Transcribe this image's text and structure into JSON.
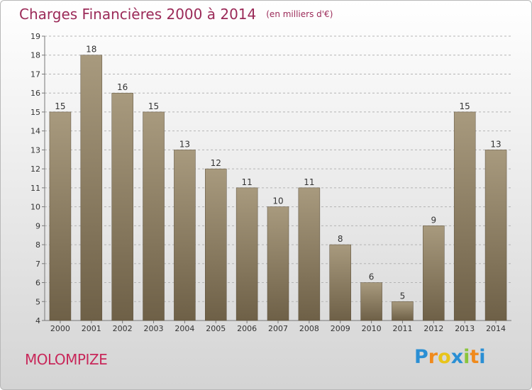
{
  "header": {
    "title": "Charges Financières 2000 à 2014",
    "unit": "(en milliers d'€)"
  },
  "footer": {
    "commune": "MOLOMPIZE",
    "logo": {
      "letters": [
        "P",
        "r",
        "o",
        "x",
        "i",
        "t",
        "i"
      ],
      "colors": [
        "#2a8fd4",
        "#f08a1c",
        "#e8c41a",
        "#2a8fd4",
        "#8ac43a",
        "#f08a1c",
        "#2a8fd4"
      ]
    }
  },
  "colors": {
    "bar_top": "#a89a7e",
    "bar_bottom": "#6e6047",
    "grid": "#b4b4b4",
    "title": "#9b2a58",
    "commune": "#c8285a"
  },
  "chart_data": {
    "type": "bar",
    "title": "Charges Financières 2000 à 2014",
    "subtitle": "(en milliers d'€)",
    "xlabel": "",
    "ylabel": "",
    "categories": [
      "2000",
      "2001",
      "2002",
      "2003",
      "2004",
      "2005",
      "2006",
      "2007",
      "2008",
      "2009",
      "2010",
      "2011",
      "2012",
      "2013",
      "2014"
    ],
    "values": [
      15,
      18,
      16,
      15,
      13,
      12,
      11,
      10,
      11,
      8,
      6,
      5,
      9,
      15,
      13
    ],
    "ylim": [
      4,
      19
    ],
    "yticks": [
      4,
      5,
      6,
      7,
      8,
      9,
      10,
      11,
      12,
      13,
      14,
      15,
      16,
      17,
      18,
      19
    ],
    "grid": true,
    "legend": "none"
  }
}
